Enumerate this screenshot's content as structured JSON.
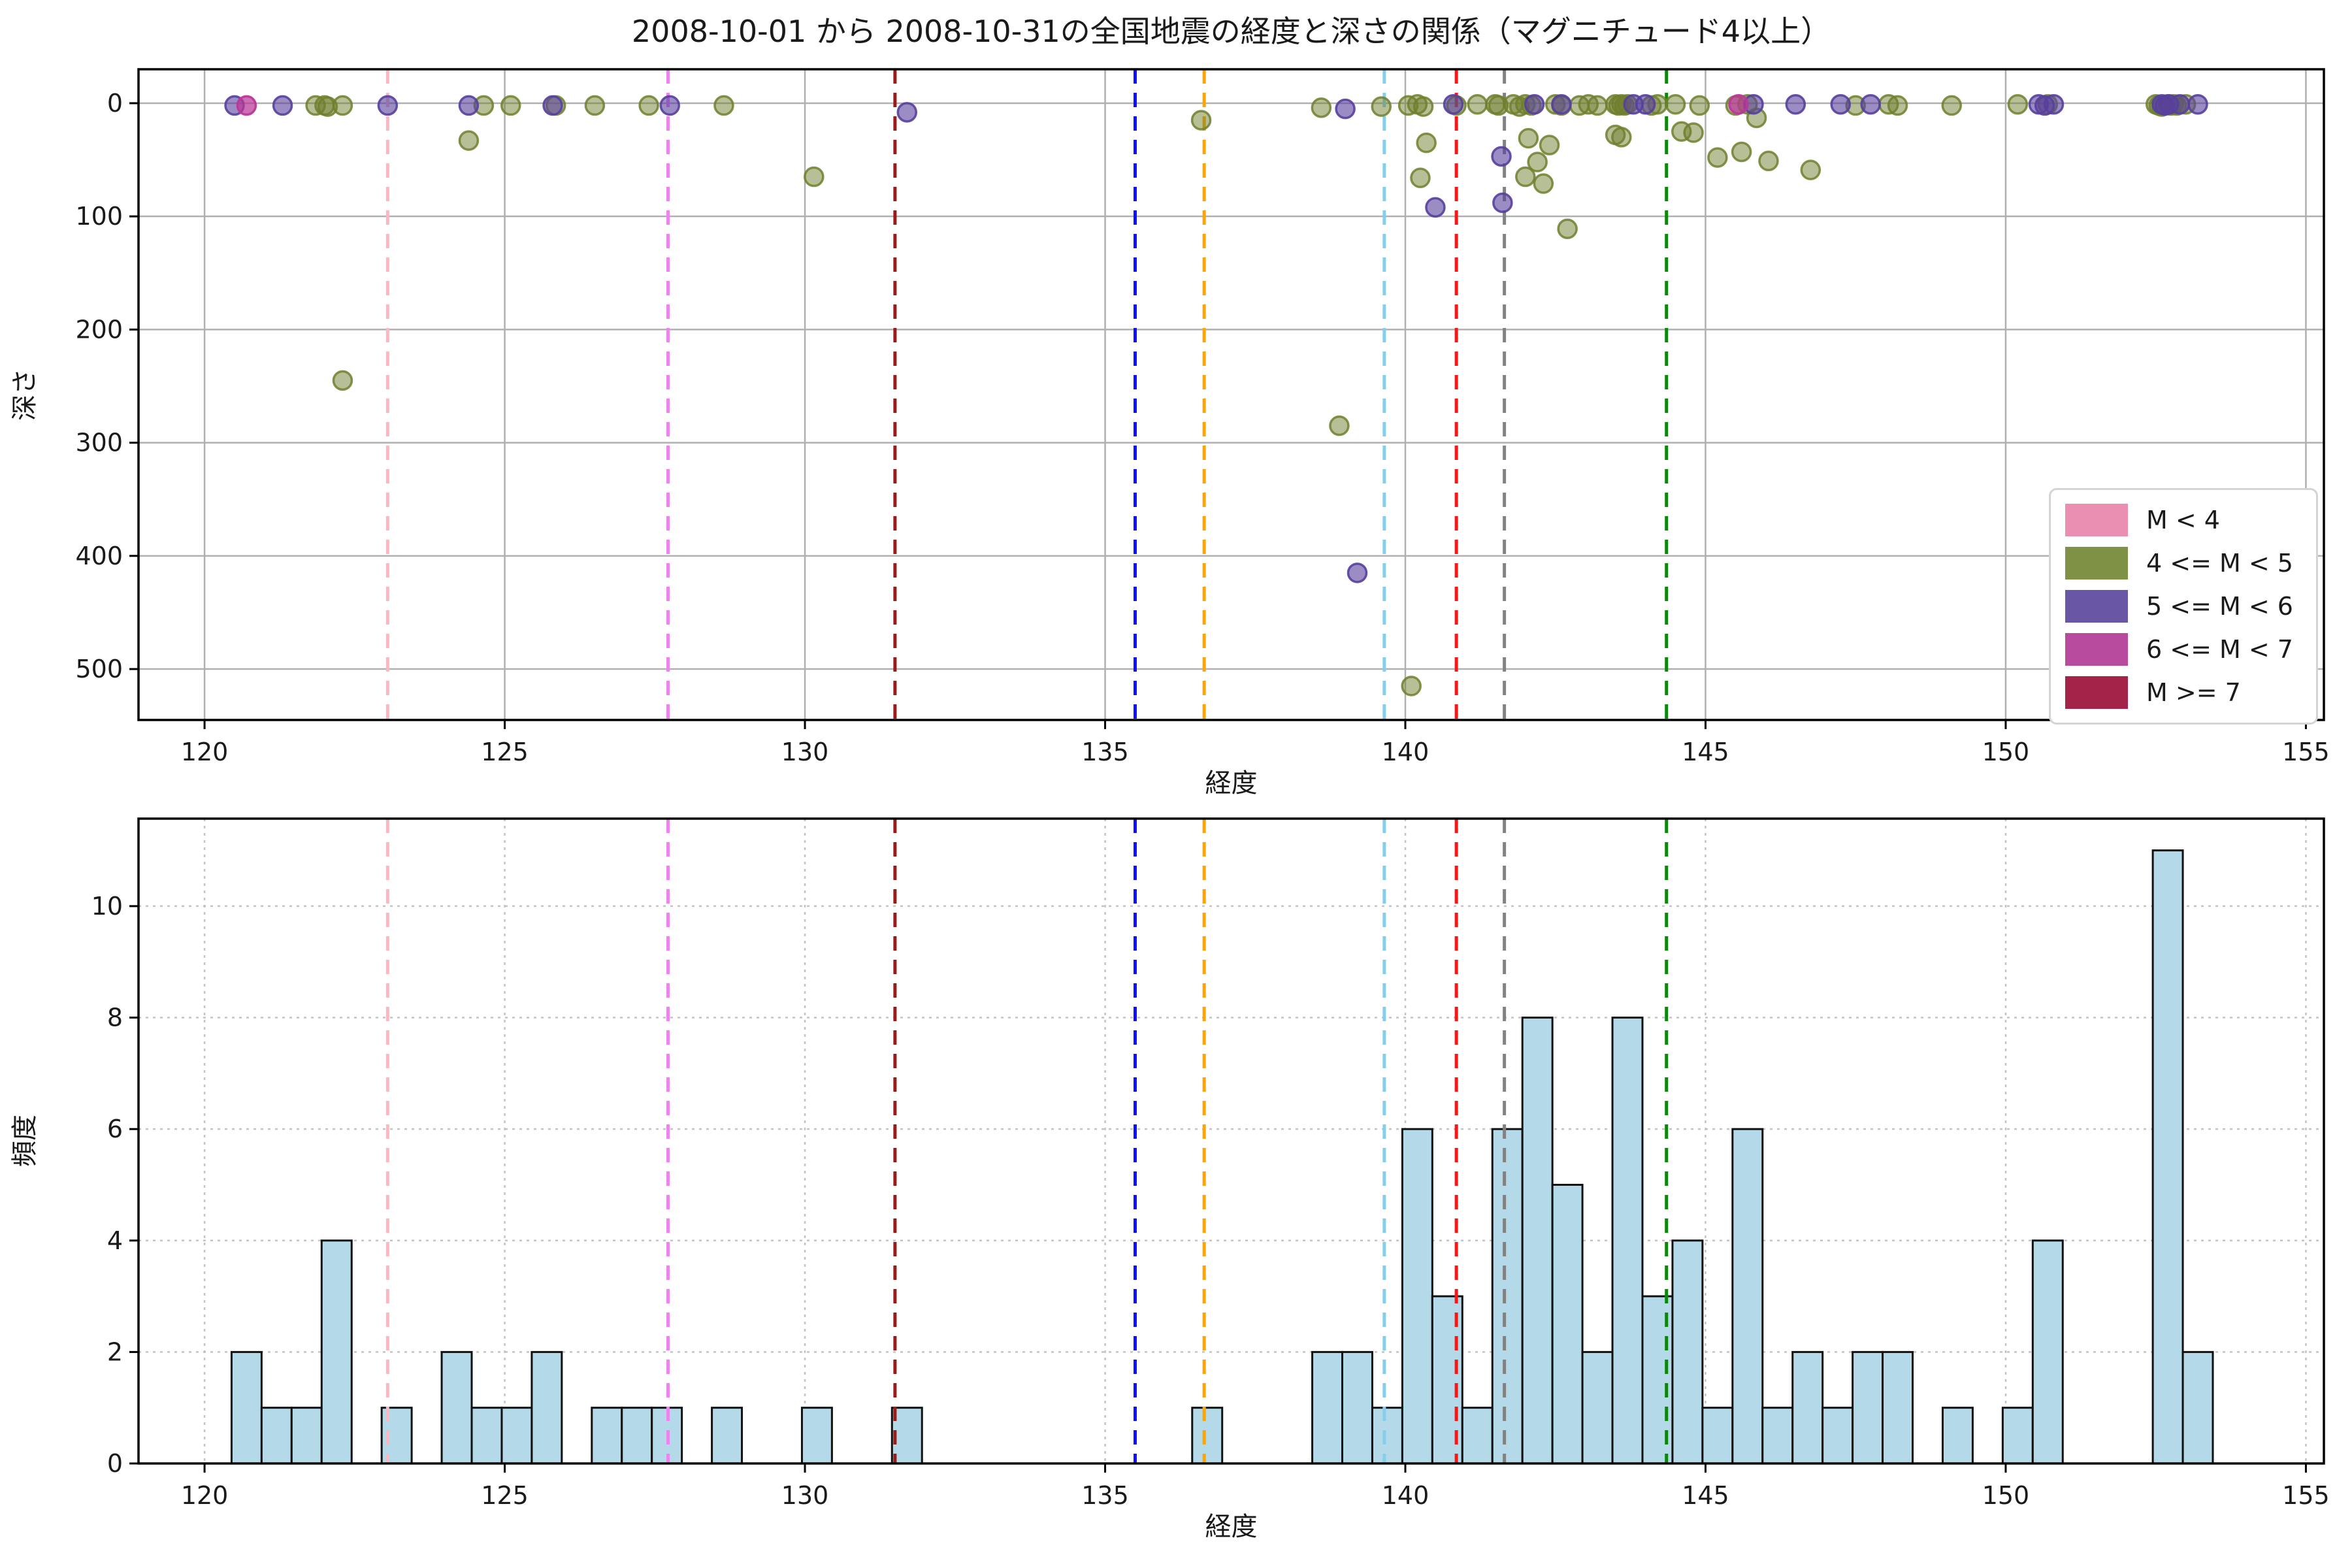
{
  "figure": {
    "title": "2008-10-01 から 2008-10-31の全国地震の経度と深さの関係（マグニチュード4以上）"
  },
  "chart_data": [
    {
      "type": "scatter",
      "title": "2008-10-01 から 2008-10-31の全国地震の経度と深さの関係（マグニチュード4以上）",
      "xlabel": "経度",
      "ylabel": "深さ",
      "xlim": [
        118.9,
        155.3
      ],
      "ylim": [
        -30,
        545
      ],
      "y_inverted": true,
      "xticks": [
        120,
        125,
        130,
        135,
        140,
        145,
        150,
        155
      ],
      "yticks": [
        0,
        100,
        200,
        300,
        400,
        500
      ],
      "grid": "solid",
      "legend_position": "right",
      "series": [
        {
          "name": "M < 4",
          "color": "#ea8fb1",
          "marker_color": "#d4729c",
          "points": []
        },
        {
          "name": "4 <= M < 5",
          "color": "#7e9145",
          "marker_color": "#6f7f2d",
          "points": [
            [
              121.85,
              2
            ],
            [
              122.0,
              2
            ],
            [
              122.05,
              3
            ],
            [
              122.3,
              2
            ],
            [
              122.3,
              245
            ],
            [
              124.4,
              33
            ],
            [
              124.65,
              2
            ],
            [
              125.1,
              2
            ],
            [
              125.85,
              2
            ],
            [
              126.5,
              2
            ],
            [
              127.4,
              2
            ],
            [
              128.65,
              2
            ],
            [
              130.15,
              65
            ],
            [
              136.6,
              15
            ],
            [
              138.6,
              4
            ],
            [
              138.9,
              285
            ],
            [
              139.6,
              3
            ],
            [
              140.05,
              2
            ],
            [
              140.2,
              1
            ],
            [
              140.3,
              3
            ],
            [
              140.35,
              35
            ],
            [
              140.25,
              66
            ],
            [
              140.1,
              515
            ],
            [
              140.85,
              2
            ],
            [
              141.2,
              1
            ],
            [
              141.5,
              1
            ],
            [
              141.55,
              2
            ],
            [
              141.8,
              1
            ],
            [
              141.9,
              3
            ],
            [
              142.0,
              1
            ],
            [
              142.1,
              2
            ],
            [
              142.05,
              31
            ],
            [
              142.2,
              52
            ],
            [
              142.0,
              65
            ],
            [
              142.3,
              71
            ],
            [
              142.4,
              37
            ],
            [
              142.5,
              1
            ],
            [
              142.6,
              2
            ],
            [
              142.7,
              111
            ],
            [
              142.9,
              2
            ],
            [
              143.05,
              1
            ],
            [
              143.2,
              2
            ],
            [
              143.5,
              1
            ],
            [
              143.55,
              2
            ],
            [
              143.6,
              1
            ],
            [
              143.65,
              2
            ],
            [
              143.7,
              1
            ],
            [
              143.5,
              28
            ],
            [
              143.6,
              30
            ],
            [
              144.1,
              2
            ],
            [
              144.2,
              1
            ],
            [
              144.5,
              1
            ],
            [
              144.6,
              25
            ],
            [
              144.8,
              26
            ],
            [
              144.9,
              2
            ],
            [
              145.2,
              48
            ],
            [
              145.5,
              2
            ],
            [
              145.6,
              43
            ],
            [
              145.7,
              1
            ],
            [
              145.85,
              13
            ],
            [
              146.05,
              51
            ],
            [
              146.75,
              59
            ],
            [
              147.5,
              2
            ],
            [
              148.05,
              1
            ],
            [
              148.2,
              2
            ],
            [
              149.1,
              2
            ],
            [
              150.2,
              1
            ],
            [
              150.7,
              1
            ],
            [
              152.5,
              1
            ],
            [
              152.55,
              2
            ],
            [
              152.6,
              3
            ],
            [
              152.7,
              1
            ],
            [
              152.75,
              2
            ],
            [
              152.8,
              1
            ],
            [
              152.85,
              2
            ],
            [
              153.0,
              1
            ]
          ]
        },
        {
          "name": "5 <= M < 6",
          "color": "#6957a6",
          "marker_color": "#583f9d",
          "points": [
            [
              120.5,
              2
            ],
            [
              121.3,
              2
            ],
            [
              123.05,
              2
            ],
            [
              124.4,
              2
            ],
            [
              125.8,
              2
            ],
            [
              127.75,
              2
            ],
            [
              131.7,
              8
            ],
            [
              139.0,
              5
            ],
            [
              139.2,
              415
            ],
            [
              140.5,
              92
            ],
            [
              140.8,
              1
            ],
            [
              141.6,
              47
            ],
            [
              141.62,
              88
            ],
            [
              142.15,
              1
            ],
            [
              142.6,
              1
            ],
            [
              143.8,
              1
            ],
            [
              144.0,
              1
            ],
            [
              145.8,
              1
            ],
            [
              146.5,
              1
            ],
            [
              147.25,
              1
            ],
            [
              147.75,
              1
            ],
            [
              150.55,
              1
            ],
            [
              150.65,
              2
            ],
            [
              150.8,
              1
            ],
            [
              152.6,
              1
            ],
            [
              152.65,
              2
            ],
            [
              152.72,
              1
            ],
            [
              152.9,
              1
            ],
            [
              153.2,
              1
            ]
          ]
        },
        {
          "name": "6 <= M < 7",
          "color": "#b94b9f",
          "marker_color": "#ba3899",
          "points": [
            [
              120.7,
              2
            ],
            [
              145.55,
              1
            ]
          ]
        },
        {
          "name": "M >= 7",
          "color": "#a32349",
          "marker_color": "#9c1f40",
          "points": []
        }
      ],
      "vlines": [
        {
          "x": 123.05,
          "color": "#ffb6c1"
        },
        {
          "x": 127.72,
          "color": "#ee82ee"
        },
        {
          "x": 131.5,
          "color": "#9b1a1a"
        },
        {
          "x": 135.5,
          "color": "#0f0fff"
        },
        {
          "x": 136.65,
          "color": "#ffa500"
        },
        {
          "x": 139.65,
          "color": "#87ceeb"
        },
        {
          "x": 140.85,
          "color": "#ff1414"
        },
        {
          "x": 141.65,
          "color": "#828282"
        },
        {
          "x": 144.35,
          "color": "#0c870c"
        }
      ]
    },
    {
      "type": "bar",
      "xlabel": "経度",
      "ylabel": "頻度",
      "xlim": [
        118.9,
        155.3
      ],
      "ylim": [
        0,
        11.57
      ],
      "xticks": [
        120,
        125,
        130,
        135,
        140,
        145,
        150,
        155
      ],
      "yticks": [
        0,
        2,
        4,
        6,
        8,
        10
      ],
      "grid": "dashed",
      "bin_width": 0.5,
      "bar_color": "#b4d9e8",
      "bar_edge_color": "#111111",
      "bars": [
        {
          "x": 120.45,
          "h": 2
        },
        {
          "x": 120.95,
          "h": 1
        },
        {
          "x": 121.45,
          "h": 1
        },
        {
          "x": 121.95,
          "h": 4
        },
        {
          "x": 122.95,
          "h": 1
        },
        {
          "x": 123.95,
          "h": 2
        },
        {
          "x": 124.45,
          "h": 1
        },
        {
          "x": 124.95,
          "h": 1
        },
        {
          "x": 125.45,
          "h": 2
        },
        {
          "x": 126.45,
          "h": 1
        },
        {
          "x": 126.95,
          "h": 1
        },
        {
          "x": 127.45,
          "h": 1
        },
        {
          "x": 128.45,
          "h": 1
        },
        {
          "x": 129.95,
          "h": 1
        },
        {
          "x": 131.45,
          "h": 1
        },
        {
          "x": 136.45,
          "h": 1
        },
        {
          "x": 138.45,
          "h": 2
        },
        {
          "x": 138.95,
          "h": 2
        },
        {
          "x": 139.45,
          "h": 1
        },
        {
          "x": 139.95,
          "h": 6
        },
        {
          "x": 140.45,
          "h": 3
        },
        {
          "x": 140.95,
          "h": 1
        },
        {
          "x": 141.45,
          "h": 6
        },
        {
          "x": 141.95,
          "h": 8
        },
        {
          "x": 142.45,
          "h": 5
        },
        {
          "x": 142.95,
          "h": 2
        },
        {
          "x": 143.45,
          "h": 8
        },
        {
          "x": 143.95,
          "h": 3
        },
        {
          "x": 144.45,
          "h": 4
        },
        {
          "x": 144.95,
          "h": 1
        },
        {
          "x": 145.45,
          "h": 6
        },
        {
          "x": 145.95,
          "h": 1
        },
        {
          "x": 146.45,
          "h": 2
        },
        {
          "x": 146.95,
          "h": 1
        },
        {
          "x": 147.45,
          "h": 2
        },
        {
          "x": 147.95,
          "h": 2
        },
        {
          "x": 148.95,
          "h": 1
        },
        {
          "x": 149.95,
          "h": 1
        },
        {
          "x": 150.45,
          "h": 4
        },
        {
          "x": 152.45,
          "h": 11
        },
        {
          "x": 152.95,
          "h": 2
        }
      ],
      "vlines": [
        {
          "x": 123.05,
          "color": "#ffb6c1"
        },
        {
          "x": 127.72,
          "color": "#ee82ee"
        },
        {
          "x": 131.5,
          "color": "#9b1a1a"
        },
        {
          "x": 135.5,
          "color": "#0f0fff"
        },
        {
          "x": 136.65,
          "color": "#ffa500"
        },
        {
          "x": 139.65,
          "color": "#87ceeb"
        },
        {
          "x": 140.85,
          "color": "#ff1414"
        },
        {
          "x": 141.65,
          "color": "#828282"
        },
        {
          "x": 144.35,
          "color": "#0c870c"
        }
      ]
    }
  ],
  "legend": {
    "entries": [
      {
        "label": "M < 4",
        "color": "#ea8fb1"
      },
      {
        "label": "4 <= M < 5",
        "color": "#7e9145"
      },
      {
        "label": "5 <= M < 6",
        "color": "#6957a6"
      },
      {
        "label": "6 <= M < 7",
        "color": "#b94b9f"
      },
      {
        "label": "M >= 7",
        "color": "#a32349"
      }
    ]
  }
}
